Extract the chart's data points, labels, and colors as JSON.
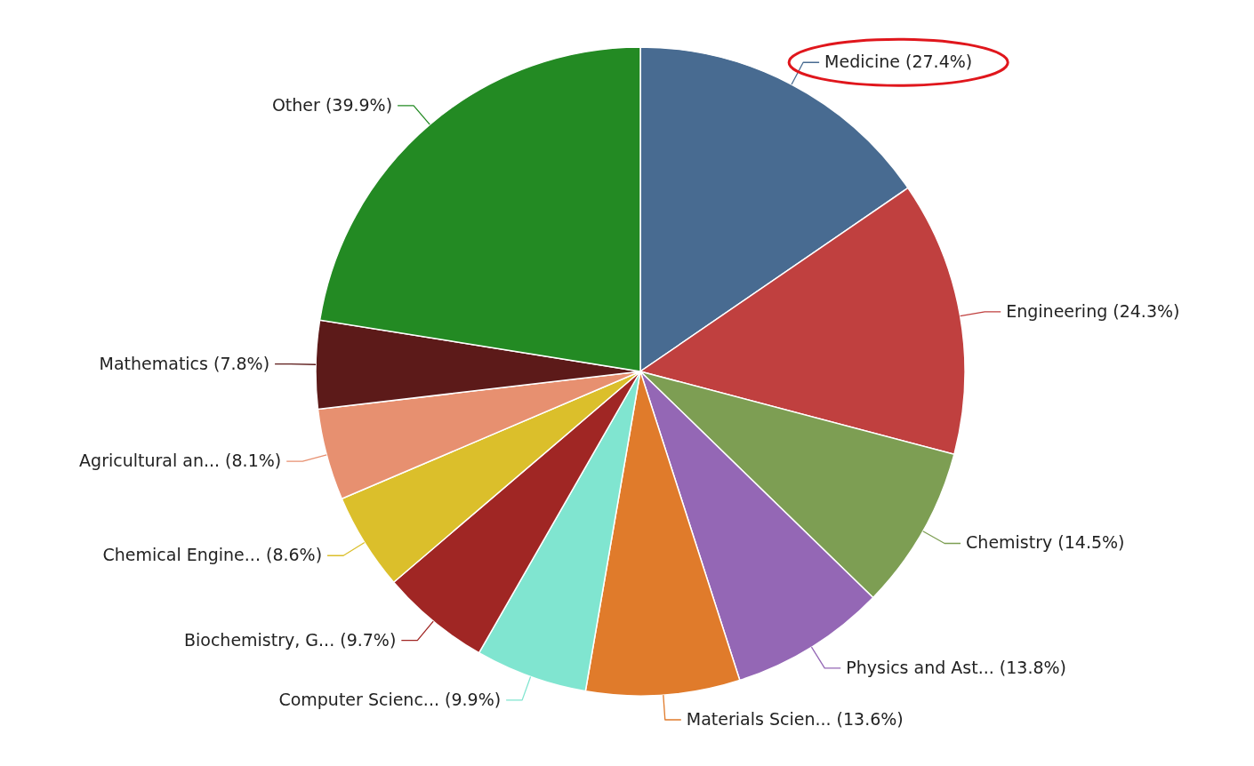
{
  "chart_data": {
    "type": "pie",
    "categories": [
      "Medicine",
      "Engineering",
      "Chemistry",
      "Physics and Ast...",
      "Materials Scien...",
      "Computer Scienc...",
      "Biochemistry, G...",
      "Chemical Engine...",
      "Agricultural an...",
      "Mathematics",
      "Other"
    ],
    "values": [
      27.4,
      24.3,
      14.5,
      13.8,
      13.6,
      9.9,
      9.7,
      8.6,
      8.1,
      7.8,
      39.9
    ],
    "value_labels": [
      "(27.4%)",
      "(24.3%)",
      "(14.5%)",
      "(13.8%)",
      "(13.6%)",
      "(9.9%)",
      "(9.7%)",
      "(8.6%)",
      "(8.1%)",
      "(7.8%)",
      "(39.9%)"
    ],
    "colors": [
      "#486b91",
      "#c0403f",
      "#7d9e53",
      "#9467b5",
      "#e07b2b",
      "#80e5d0",
      "#a02624",
      "#dbbf2b",
      "#e79070",
      "#5c1a19",
      "#238a23"
    ]
  }
}
